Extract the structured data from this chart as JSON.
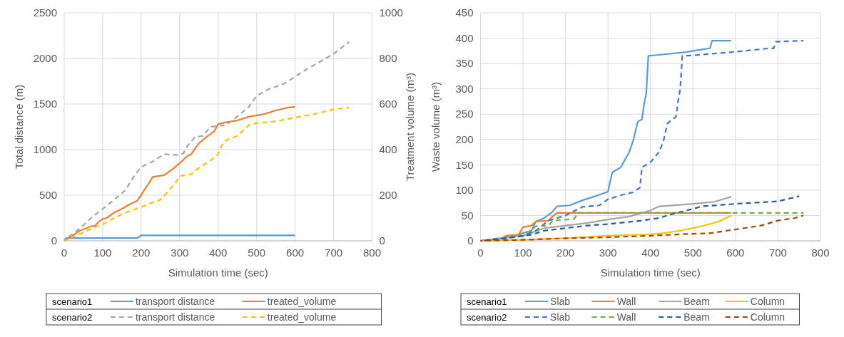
{
  "chart_data": [
    {
      "type": "line",
      "xlabel": "Simulation time (sec)",
      "ylabel": "Total distance (m)",
      "y2label": "Treatment volume (m³)",
      "xlim": [
        0,
        800
      ],
      "xticks": [
        0,
        100,
        200,
        300,
        400,
        500,
        600,
        700,
        800
      ],
      "ylim": [
        0,
        2500
      ],
      "yticks": [
        0,
        500,
        1000,
        1500,
        2000,
        2500
      ],
      "y2lim": [
        0,
        1000
      ],
      "y2ticks": [
        0,
        200,
        400,
        600,
        800,
        1000
      ],
      "grid": true,
      "legend": "bottom",
      "annotations": [
        "scenario1",
        "scenario2"
      ],
      "series": [
        {
          "name": "transport distance",
          "color": "#5b9bd5",
          "line_style": "solid",
          "x": [
            0,
            5,
            190,
            200,
            600
          ],
          "values": [
            0,
            30,
            30,
            60,
            60
          ]
        },
        {
          "name": "treated_volume",
          "color": "#ed7d31",
          "line_style": "solid",
          "axis": "y2",
          "x": [
            0,
            20,
            40,
            60,
            70,
            80,
            90,
            100,
            110,
            130,
            150,
            170,
            190,
            200,
            210,
            220,
            230,
            260,
            280,
            300,
            320,
            330,
            350,
            370,
            390,
            400,
            420,
            450,
            480,
            520,
            550,
            580,
            600
          ],
          "values": [
            0,
            20,
            44,
            56,
            64,
            66,
            84,
            96,
            100,
            124,
            140,
            160,
            176,
            200,
            228,
            252,
            280,
            288,
            312,
            340,
            372,
            380,
            428,
            456,
            480,
            512,
            520,
            528,
            544,
            556,
            572,
            584,
            588
          ]
        },
        {
          "name": "transport distance",
          "color": "#a5a5a5",
          "line_style": "dashed",
          "x": [
            0,
            10,
            30,
            50,
            70,
            100,
            130,
            160,
            180,
            200,
            230,
            260,
            300,
            310,
            320,
            340,
            360,
            380,
            400,
            420,
            440,
            460,
            480,
            500,
            530,
            570,
            600,
            630,
            700,
            740
          ],
          "values": [
            0,
            40,
            100,
            170,
            250,
            350,
            450,
            560,
            700,
            810,
            870,
            950,
            940,
            960,
            1040,
            1140,
            1150,
            1250,
            1260,
            1270,
            1330,
            1400,
            1470,
            1590,
            1660,
            1720,
            1800,
            1880,
            2050,
            2180
          ]
        },
        {
          "name": "treated_volume",
          "color": "#ffc000",
          "line_style": "dashed",
          "axis": "y2",
          "x": [
            0,
            20,
            50,
            80,
            100,
            130,
            160,
            180,
            200,
            230,
            250,
            270,
            290,
            300,
            330,
            350,
            380,
            400,
            410,
            420,
            450,
            480,
            500,
            550,
            600,
            650,
            700,
            740
          ],
          "values": [
            0,
            16,
            36,
            60,
            72,
            100,
            124,
            136,
            148,
            168,
            180,
            216,
            256,
            284,
            292,
            320,
            352,
            380,
            420,
            440,
            460,
            508,
            516,
            524,
            540,
            556,
            576,
            584
          ]
        }
      ]
    },
    {
      "type": "line",
      "xlabel": "Simulation time (sec)",
      "ylabel": "Waste volume (m³)",
      "xlim": [
        0,
        800
      ],
      "xticks": [
        0,
        100,
        200,
        300,
        400,
        500,
        600,
        700,
        800
      ],
      "ylim": [
        0,
        450
      ],
      "yticks": [
        0,
        50,
        100,
        150,
        200,
        250,
        300,
        350,
        400,
        450
      ],
      "grid": true,
      "legend": "bottom",
      "annotations": [
        "scenario1",
        "scenario2"
      ],
      "series": [
        {
          "name": "Slab",
          "color": "#5b9bd5",
          "line_style": "solid",
          "x": [
            0,
            50,
            80,
            100,
            120,
            130,
            150,
            170,
            180,
            210,
            240,
            270,
            300,
            310,
            330,
            350,
            360,
            370,
            380,
            385,
            390,
            395,
            420,
            480,
            500,
            540,
            545,
            590
          ],
          "values": [
            0,
            5,
            10,
            15,
            20,
            38,
            45,
            58,
            68,
            70,
            80,
            88,
            97,
            135,
            145,
            175,
            200,
            235,
            240,
            270,
            290,
            365,
            367,
            372,
            375,
            380,
            395,
            395
          ]
        },
        {
          "name": "Wall",
          "color": "#ed7d31",
          "line_style": "solid",
          "x": [
            0,
            50,
            60,
            90,
            100,
            120,
            130,
            160,
            170,
            180,
            590
          ],
          "values": [
            0,
            5,
            10,
            12,
            27,
            30,
            38,
            40,
            48,
            55,
            55
          ]
        },
        {
          "name": "Beam",
          "color": "#a5a5a5",
          "line_style": "solid",
          "x": [
            0,
            50,
            100,
            150,
            200,
            250,
            300,
            350,
            400,
            420,
            500,
            550,
            570,
            590
          ],
          "values": [
            0,
            5,
            10,
            25,
            30,
            35,
            42,
            48,
            60,
            68,
            73,
            77,
            82,
            87
          ]
        },
        {
          "name": "Column",
          "color": "#ffc000",
          "line_style": "solid",
          "x": [
            0,
            100,
            200,
            300,
            400,
            430,
            470,
            510,
            540,
            560,
            590
          ],
          "values": [
            0,
            2,
            5,
            10,
            13,
            15,
            20,
            27,
            33,
            38,
            50
          ]
        },
        {
          "name": "Slab",
          "color": "#4472c4",
          "line_style": "dashed",
          "x": [
            0,
            60,
            100,
            130,
            160,
            200,
            240,
            280,
            300,
            330,
            360,
            375,
            380,
            400,
            420,
            430,
            440,
            460,
            465,
            470,
            475,
            500,
            600,
            680,
            690,
            695,
            760
          ],
          "values": [
            0,
            5,
            10,
            20,
            40,
            50,
            67,
            70,
            82,
            90,
            96,
            105,
            145,
            155,
            175,
            195,
            232,
            245,
            275,
            300,
            365,
            366,
            373,
            380,
            380,
            393,
            395
          ]
        },
        {
          "name": "Wall",
          "color": "#70ad47",
          "line_style": "dashed",
          "x": [
            0,
            70,
            120,
            130,
            160,
            170,
            220,
            230,
            760
          ],
          "values": [
            0,
            8,
            20,
            29,
            30,
            40,
            43,
            55,
            55
          ]
        },
        {
          "name": "Beam",
          "color": "#255e91",
          "line_style": "dashed",
          "x": [
            0,
            60,
            120,
            150,
            200,
            250,
            300,
            380,
            420,
            440,
            470,
            500,
            520,
            600,
            700,
            720,
            750
          ],
          "values": [
            0,
            5,
            12,
            20,
            25,
            30,
            33,
            40,
            45,
            50,
            57,
            63,
            68,
            73,
            78,
            82,
            88
          ]
        },
        {
          "name": "Column",
          "color": "#9e480e",
          "line_style": "dashed",
          "x": [
            0,
            100,
            200,
            300,
            400,
            500,
            540,
            580,
            620,
            660,
            700,
            740,
            760
          ],
          "values": [
            0,
            2,
            5,
            7,
            10,
            14,
            15,
            20,
            25,
            30,
            40,
            45,
            50
          ]
        }
      ]
    }
  ]
}
